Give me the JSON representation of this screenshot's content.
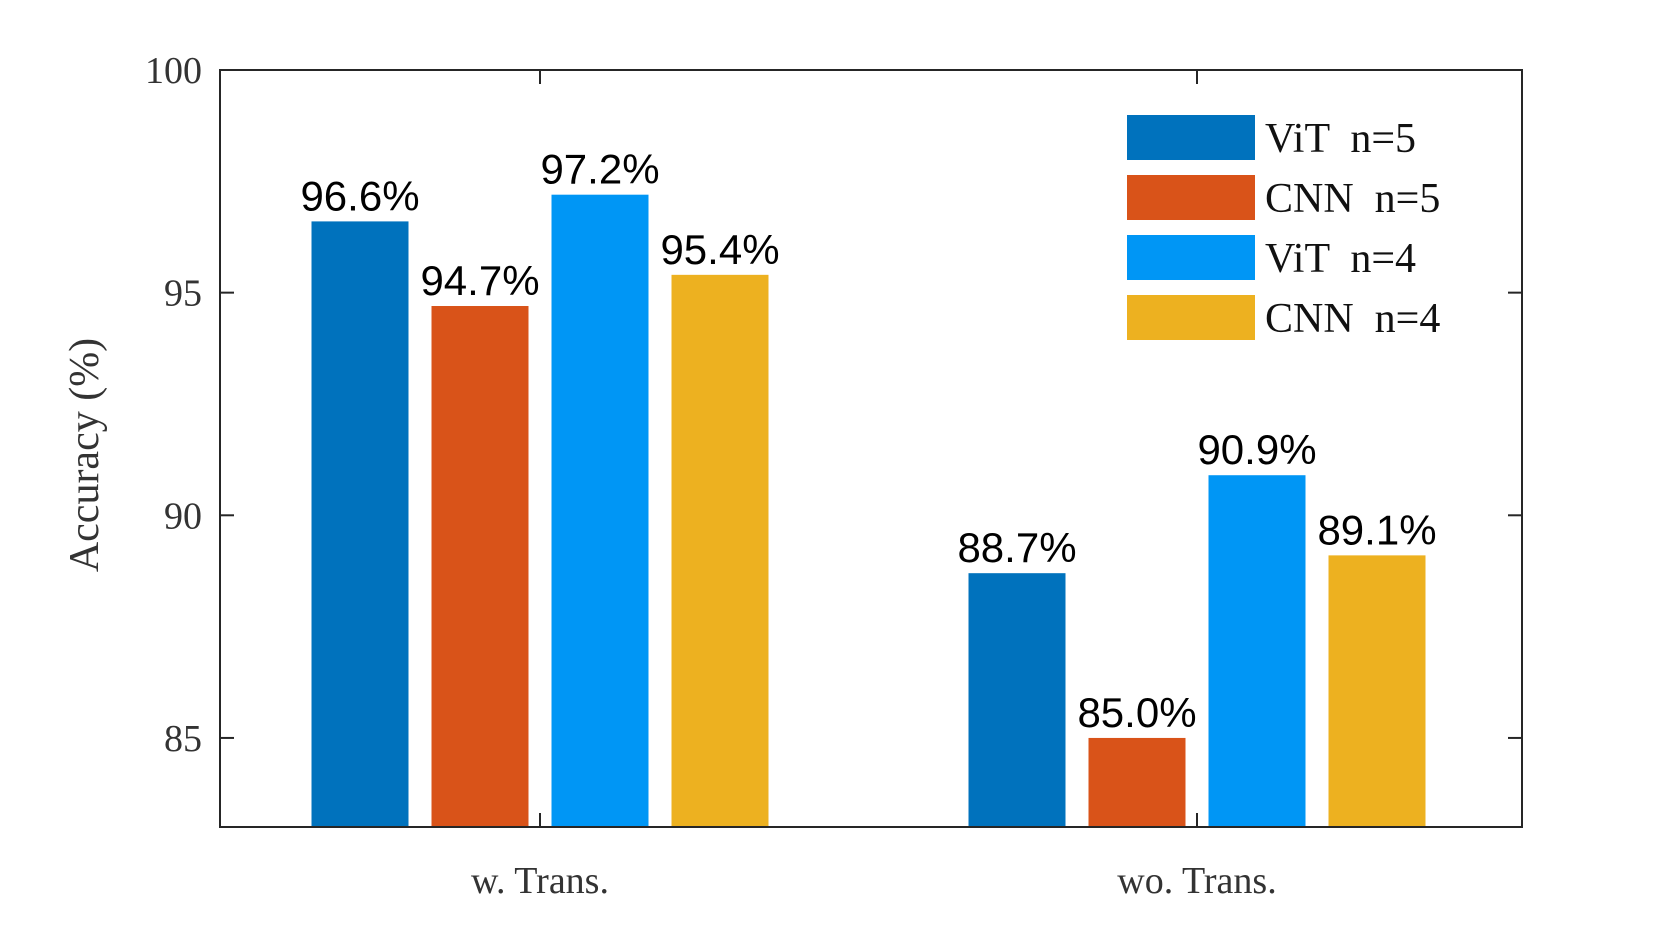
{
  "chart_data": {
    "type": "bar",
    "categories": [
      "w. Trans.",
      "wo. Trans."
    ],
    "series": [
      {
        "name": "ViT  n=5",
        "color": "#0072BD",
        "values": [
          96.6,
          88.7
        ],
        "labels": [
          "96.6%",
          "88.7%"
        ]
      },
      {
        "name": "CNN  n=5",
        "color": "#D95319",
        "values": [
          94.7,
          85.0
        ],
        "labels": [
          "94.7%",
          "85.0%"
        ]
      },
      {
        "name": "ViT  n=4",
        "color": "#0096F5",
        "values": [
          97.2,
          90.9
        ],
        "labels": [
          "97.2%",
          "90.9%"
        ]
      },
      {
        "name": "CNN  n=4",
        "color": "#EDB120",
        "values": [
          95.4,
          89.1
        ],
        "labels": [
          "95.4%",
          "89.1%"
        ]
      }
    ],
    "ylabel": "Accuracy (%)",
    "xlabel": "",
    "title": "",
    "ylim": [
      83,
      100
    ],
    "yticks": [
      85,
      90,
      95,
      100
    ],
    "grid": false,
    "legend_position": "top-right"
  }
}
